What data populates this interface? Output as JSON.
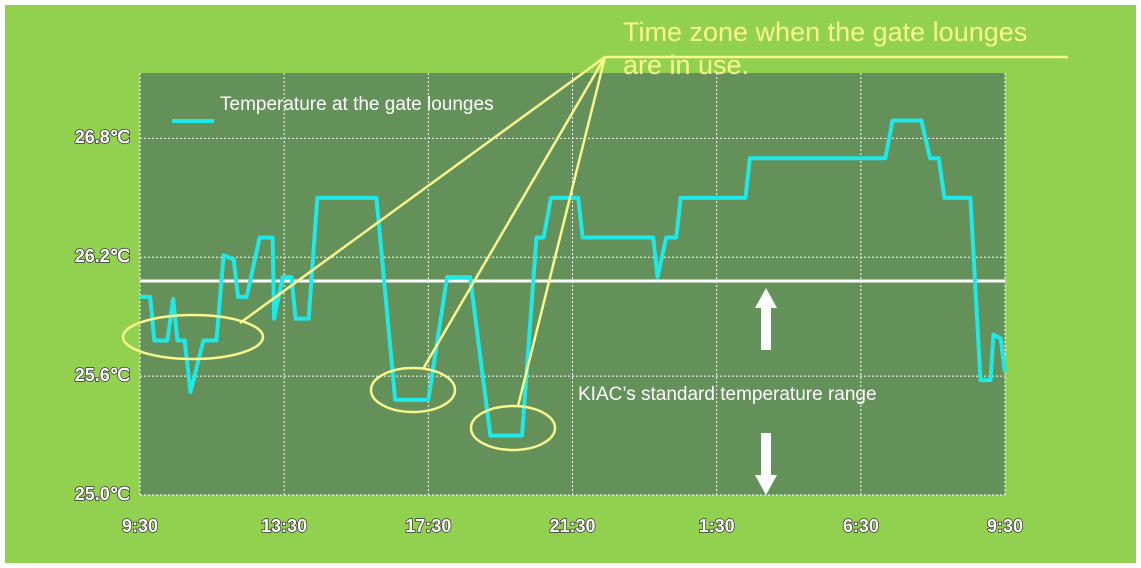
{
  "chart_data": {
    "type": "line",
    "callout": "Time zone when the gate lounges are in use.",
    "range_label": "KIAC’s standard temperature range",
    "series": [
      {
        "name": "Temperature at the gate lounges",
        "color": "#1ee8e8",
        "x": [
          0,
          0.07,
          0.1,
          0.19,
          0.23,
          0.26,
          0.31,
          0.35,
          0.44,
          0.53,
          0.58,
          0.65,
          0.68,
          0.74,
          0.83,
          0.92,
          0.93,
          0.99,
          1.05,
          1.08,
          1.17,
          1.23,
          1.64,
          1.77,
          2.0,
          2.13,
          2.29,
          2.43,
          2.65,
          2.75,
          2.8,
          2.85,
          3.04,
          3.07,
          3.56,
          3.59,
          3.65,
          3.72,
          3.75,
          4.2,
          4.23,
          5.17,
          5.22,
          5.42,
          5.48,
          5.54,
          5.58,
          5.76,
          5.83,
          5.9,
          5.92,
          5.97,
          6.0
        ],
        "values": [
          26.0,
          26.0,
          25.78,
          25.78,
          25.99,
          25.78,
          25.78,
          25.52,
          25.78,
          25.78,
          26.21,
          26.19,
          26.0,
          26.0,
          26.3,
          26.3,
          25.89,
          26.1,
          26.1,
          25.89,
          25.89,
          26.5,
          26.5,
          25.48,
          25.48,
          26.1,
          26.1,
          25.3,
          25.3,
          26.3,
          26.3,
          26.5,
          26.5,
          26.3,
          26.3,
          26.1,
          26.3,
          26.3,
          26.5,
          26.5,
          26.7,
          26.7,
          26.89,
          26.89,
          26.7,
          26.7,
          26.5,
          26.5,
          25.58,
          25.58,
          25.81,
          25.79,
          25.62
        ]
      }
    ],
    "threshold": 26.08,
    "xlim": [
      0,
      6
    ],
    "xticks": [
      {
        "value": 0,
        "label": "9:30"
      },
      {
        "value": 1,
        "label": "13:30"
      },
      {
        "value": 2,
        "label": "17:30"
      },
      {
        "value": 3,
        "label": "21:30"
      },
      {
        "value": 4,
        "label": "1:30"
      },
      {
        "value": 5,
        "label": "6:30"
      },
      {
        "value": 6,
        "label": "9:30"
      }
    ],
    "ylim": [
      25.0,
      27.13
    ],
    "yticks": [
      {
        "value": 25.0,
        "label": "25.0℃"
      },
      {
        "value": 25.6,
        "label": "25.6℃"
      },
      {
        "value": 26.2,
        "label": "26.2℃"
      },
      {
        "value": 26.8,
        "label": "26.8℃"
      }
    ],
    "grid": true
  }
}
